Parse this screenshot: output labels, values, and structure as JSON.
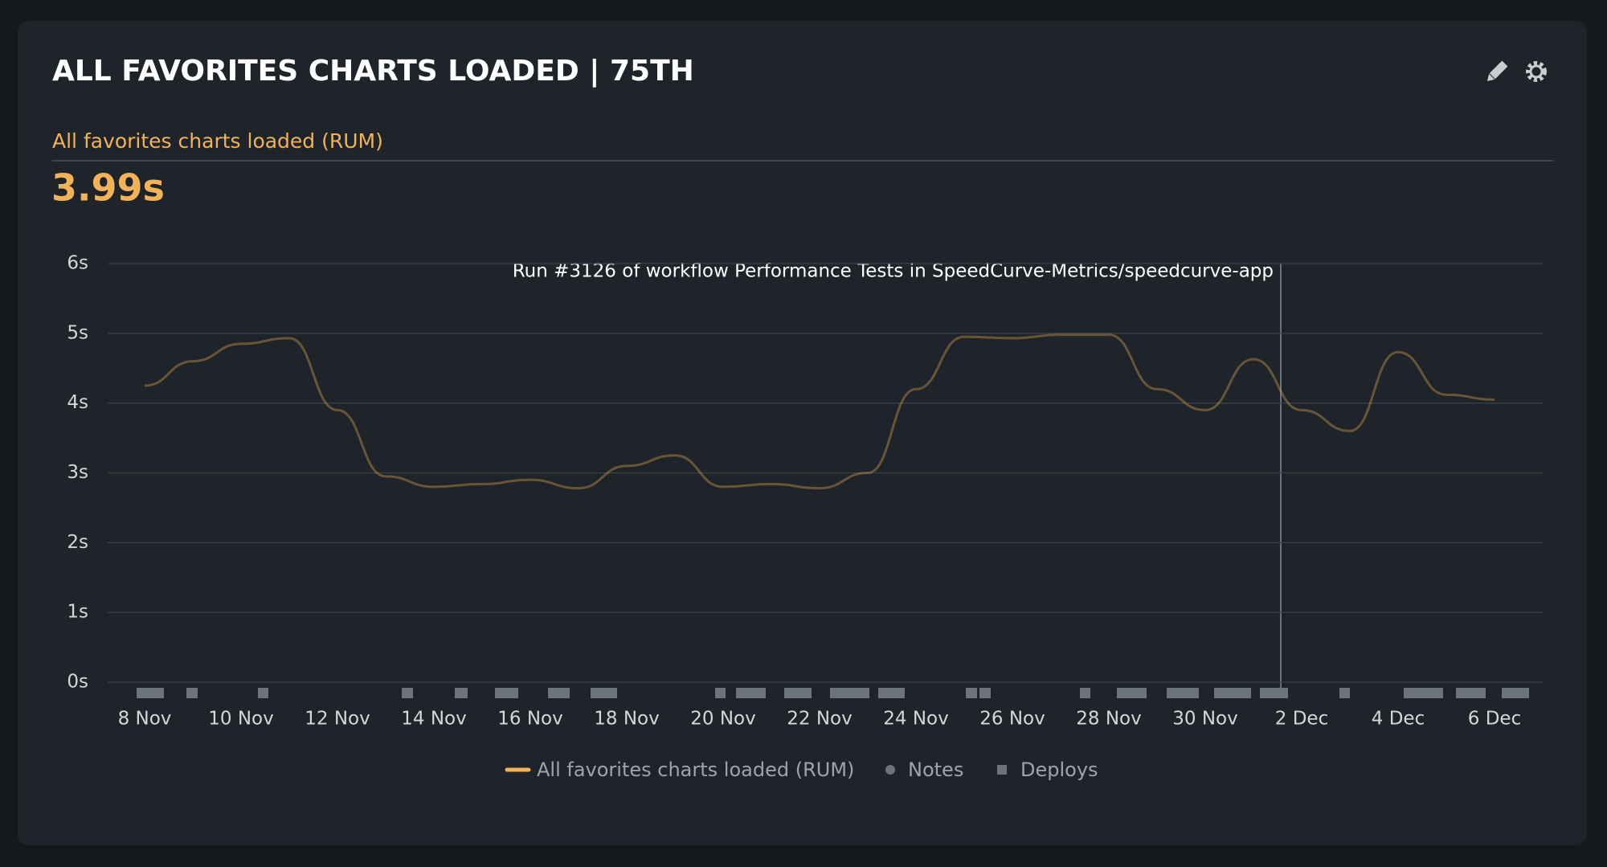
{
  "header": {
    "title": "ALL FAVORITES CHARTS LOADED | 75TH",
    "metric_label": "All favorites charts loaded (RUM)",
    "metric_value": "3.99s"
  },
  "chart_data": {
    "type": "line",
    "annotation": "Run #3126 of workflow Performance Tests in SpeedCurve-Metrics/speedcurve-app",
    "categories": [
      "8 Nov",
      null,
      "10 Nov",
      null,
      "12 Nov",
      null,
      "14 Nov",
      null,
      "16 Nov",
      null,
      "18 Nov",
      null,
      "20 Nov",
      null,
      "22 Nov",
      null,
      "24 Nov",
      null,
      "26 Nov",
      null,
      "28 Nov",
      null,
      "30 Nov",
      null,
      "2 Dec",
      null,
      "4 Dec",
      null,
      "6 Dec"
    ],
    "series": [
      {
        "name": "All favorites charts loaded (RUM)",
        "color": "#f0b35a",
        "values": [
          4.25,
          4.6,
          4.85,
          4.93,
          3.9,
          2.95,
          2.8,
          2.84,
          2.9,
          2.78,
          3.1,
          3.25,
          2.8,
          2.84,
          2.78,
          3.0,
          4.2,
          4.95,
          4.93,
          4.98,
          4.98,
          4.2,
          3.9,
          4.63,
          3.9,
          3.6,
          4.73,
          4.12,
          4.05
        ]
      }
    ],
    "legend_extra": [
      "Notes",
      "Deploys"
    ],
    "ylim": [
      0,
      6
    ],
    "yticks": [
      {
        "value": 0,
        "label": "0s"
      },
      {
        "value": 1,
        "label": "1s"
      },
      {
        "value": 2,
        "label": "2s"
      },
      {
        "value": 3,
        "label": "3s"
      },
      {
        "value": 4,
        "label": "4s"
      },
      {
        "value": 5,
        "label": "5s"
      },
      {
        "value": 6,
        "label": "6s"
      }
    ],
    "grid": true
  }
}
